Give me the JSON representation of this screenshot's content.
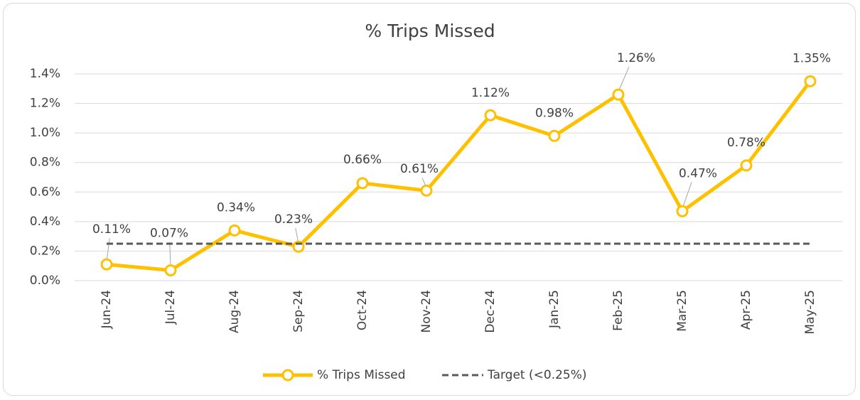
{
  "chart_data": {
    "type": "line",
    "title": "% Trips Missed",
    "categories": [
      "Jun-24",
      "Jul-24",
      "Aug-24",
      "Sep-24",
      "Oct-24",
      "Nov-24",
      "Dec-24",
      "Jan-25",
      "Feb-25",
      "Mar-25",
      "Apr-25",
      "May-25"
    ],
    "series": [
      {
        "name": "% Trips Missed",
        "color": "#FFC000",
        "values": [
          0.11,
          0.07,
          0.34,
          0.23,
          0.66,
          0.61,
          1.12,
          0.98,
          1.26,
          0.47,
          0.78,
          1.35
        ],
        "value_labels": [
          "0.11%",
          "0.07%",
          "0.34%",
          "0.23%",
          "0.66%",
          "0.61%",
          "1.12%",
          "0.98%",
          "1.26%",
          "0.47%",
          "0.78%",
          "1.35%"
        ]
      },
      {
        "name": "Target (<0.25%)",
        "color": "#595959",
        "dashed": true,
        "values": [
          0.25,
          0.25,
          0.25,
          0.25,
          0.25,
          0.25,
          0.25,
          0.25,
          0.25,
          0.25,
          0.25,
          0.25
        ]
      }
    ],
    "ylim": [
      0,
      1.4
    ],
    "yticks": [
      {
        "value": 0,
        "label": "0.0%"
      },
      {
        "value": 0.2,
        "label": "0.2%"
      },
      {
        "value": 0.4,
        "label": "0.4%"
      },
      {
        "value": 0.6,
        "label": "0.6%"
      },
      {
        "value": 0.8,
        "label": "0.8%"
      },
      {
        "value": 1.0,
        "label": "1.0%"
      },
      {
        "value": 1.2,
        "label": "1.2%"
      },
      {
        "value": 1.4,
        "label": "1.4%"
      }
    ],
    "grid": true,
    "legend": "bottom"
  }
}
